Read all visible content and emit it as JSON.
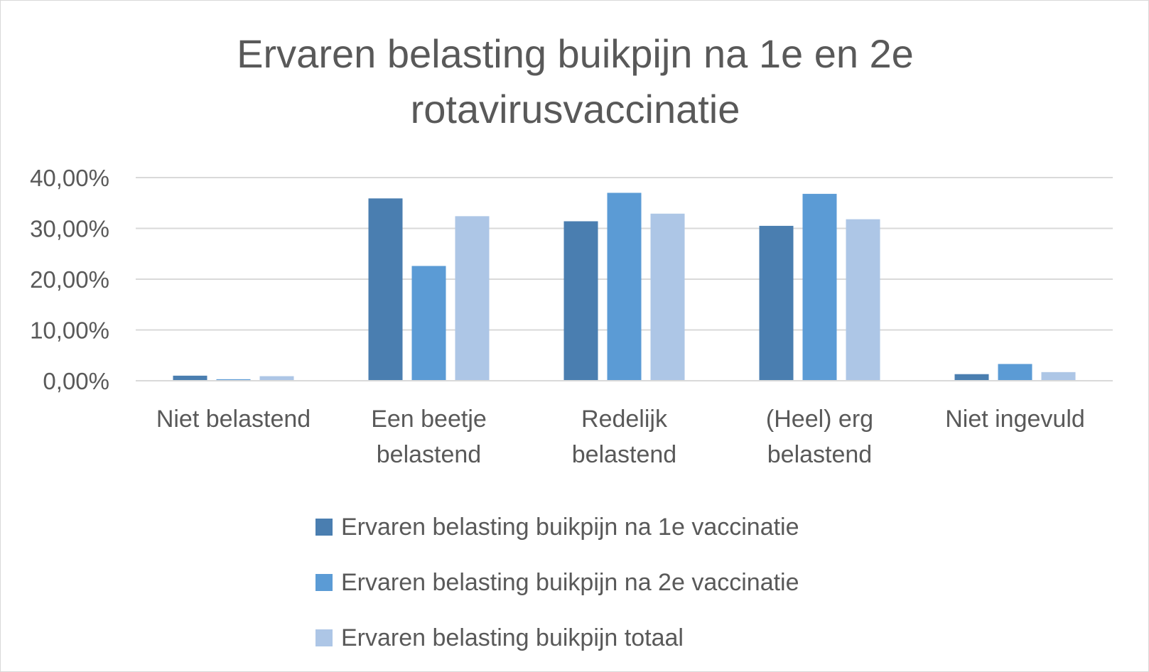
{
  "chart_data": {
    "type": "bar",
    "title_lines": [
      "Ervaren belasting buikpijn na 1e en 2e",
      "rotavirusvaccinatie"
    ],
    "categories": [
      [
        "Niet belastend"
      ],
      [
        "Een beetje",
        "belastend"
      ],
      [
        "Redelijk",
        "belastend"
      ],
      [
        "(Heel) erg",
        "belastend"
      ],
      [
        "Niet ingevuld"
      ]
    ],
    "series": [
      {
        "name": "Ervaren belasting buikpijn na 1e vaccinatie",
        "color": "#4a7eb0",
        "values": [
          1.0,
          35.9,
          31.4,
          30.5,
          1.3
        ]
      },
      {
        "name": "Ervaren belasting buikpijn na 2e vaccinatie",
        "color": "#5b9bd5",
        "values": [
          0.3,
          22.6,
          37.0,
          36.8,
          3.3
        ]
      },
      {
        "name": "Ervaren belasting buikpijn totaal",
        "color": "#adc6e6",
        "values": [
          0.9,
          32.4,
          32.9,
          31.8,
          1.7
        ]
      }
    ],
    "yticks": [
      "0,00%",
      "10,00%",
      "20,00%",
      "30,00%",
      "40,00%"
    ],
    "ylim": [
      0,
      40
    ],
    "grid": true,
    "legend_position": "bottom"
  }
}
